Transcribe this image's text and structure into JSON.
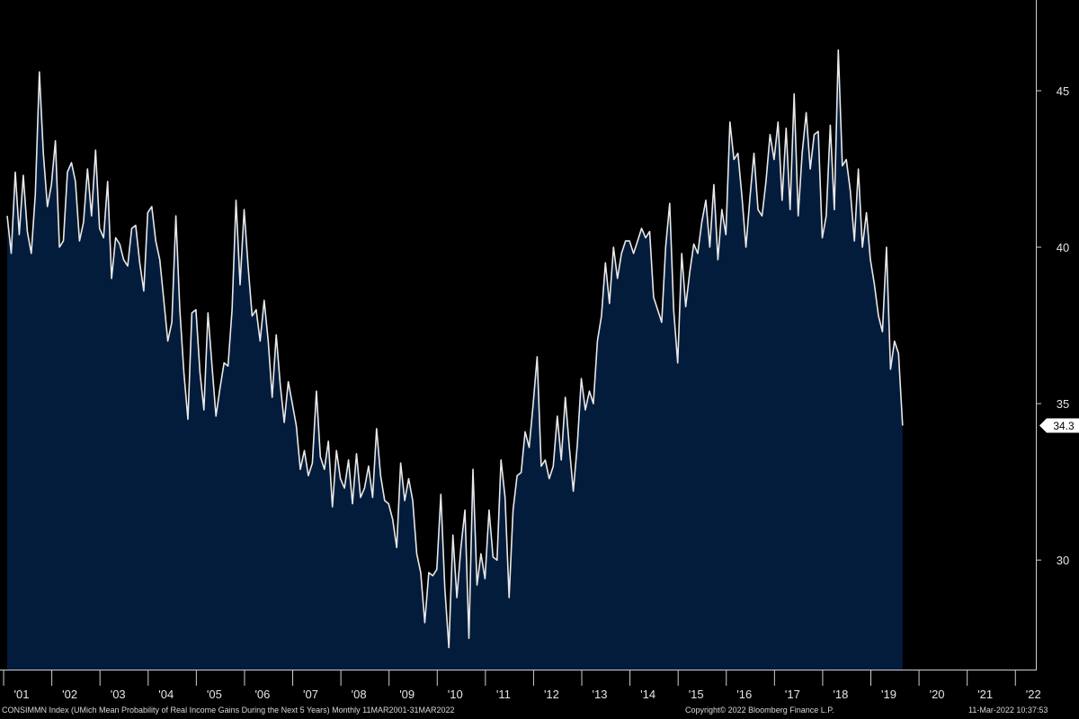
{
  "colors": {
    "background": "#000000",
    "area_fill": "#041c3c",
    "line": "#e8e8e8",
    "axis": "#cfcfcf",
    "label": "#e6e6e6",
    "last_value_box": "#ffffff"
  },
  "footer": {
    "description": "CONSIMMN Index (UMich Mean Probability of Real Income Gains During the Next 5 Years)  Monthly 11MAR2001-31MAR2022",
    "copyright": "Copyright© 2022 Bloomberg Finance L.P.",
    "timestamp": "11-Mar-2022 10:37:53"
  },
  "chart_data": {
    "type": "area",
    "x_start": 2001.0,
    "x_step": 0.0833333,
    "xlim": [
      2000.85,
      2022.35
    ],
    "ylim": [
      26.5,
      47.9
    ],
    "grid": false,
    "y_axis_side": "right",
    "y_ticks": [
      30,
      35,
      40,
      45
    ],
    "x_ticks": [
      {
        "value": 2001,
        "label": "'01"
      },
      {
        "value": 2002,
        "label": "'02"
      },
      {
        "value": 2003,
        "label": "'03"
      },
      {
        "value": 2004,
        "label": "'04"
      },
      {
        "value": 2005,
        "label": "'05"
      },
      {
        "value": 2006,
        "label": "'06"
      },
      {
        "value": 2007,
        "label": "'07"
      },
      {
        "value": 2008,
        "label": "'08"
      },
      {
        "value": 2009,
        "label": "'09"
      },
      {
        "value": 2010,
        "label": "'10"
      },
      {
        "value": 2011,
        "label": "'11"
      },
      {
        "value": 2012,
        "label": "'12"
      },
      {
        "value": 2013,
        "label": "'13"
      },
      {
        "value": 2014,
        "label": "'14"
      },
      {
        "value": 2015,
        "label": "'15"
      },
      {
        "value": 2016,
        "label": "'16"
      },
      {
        "value": 2017,
        "label": "'17"
      },
      {
        "value": 2018,
        "label": "'18"
      },
      {
        "value": 2019,
        "label": "'19"
      },
      {
        "value": 2020,
        "label": "'20"
      },
      {
        "value": 2021,
        "label": "'21"
      },
      {
        "value": 2022,
        "label": "'22"
      }
    ],
    "last_value_label": "34.3",
    "series": [
      {
        "values": [
          41.0,
          39.8,
          42.4,
          40.4,
          42.3,
          40.5,
          39.8,
          41.7,
          45.6,
          43.0,
          41.3,
          42.0,
          43.4,
          40.0,
          40.2,
          42.4,
          42.7,
          42.1,
          40.2,
          40.8,
          42.5,
          41.0,
          43.1,
          40.6,
          40.3,
          42.1,
          39.0,
          40.3,
          40.1,
          39.6,
          39.4,
          40.6,
          40.7,
          39.5,
          38.6,
          41.1,
          41.3,
          40.2,
          39.6,
          38.3,
          37.0,
          37.6,
          41.0,
          38.0,
          36.0,
          34.5,
          37.9,
          38.0,
          36.0,
          34.8,
          37.9,
          36.2,
          34.6,
          35.5,
          36.3,
          36.2,
          38.0,
          41.5,
          38.8,
          41.2,
          39.4,
          37.8,
          38.0,
          37.0,
          38.3,
          37.0,
          35.2,
          37.2,
          35.6,
          34.4,
          35.7,
          35.0,
          34.3,
          32.9,
          33.5,
          32.7,
          33.1,
          35.4,
          33.3,
          32.9,
          33.8,
          31.7,
          33.5,
          32.6,
          32.3,
          33.2,
          31.8,
          33.4,
          32.0,
          32.3,
          33.0,
          32.0,
          34.2,
          32.7,
          31.9,
          31.8,
          31.3,
          30.4,
          33.1,
          31.9,
          32.6,
          31.9,
          30.2,
          29.6,
          28.0,
          29.6,
          29.5,
          29.7,
          32.1,
          29.1,
          27.2,
          30.8,
          28.8,
          30.4,
          31.6,
          27.5,
          32.9,
          29.2,
          30.2,
          29.4,
          31.6,
          30.1,
          30.0,
          33.2,
          32.0,
          28.8,
          31.6,
          32.7,
          32.8,
          34.1,
          33.6,
          35.0,
          36.5,
          33.0,
          33.2,
          32.6,
          33.0,
          34.6,
          33.2,
          35.2,
          33.6,
          32.2,
          33.7,
          35.8,
          34.8,
          35.4,
          35.0,
          37.0,
          37.8,
          39.5,
          38.2,
          40.0,
          39.0,
          39.8,
          40.2,
          40.2,
          39.8,
          40.2,
          40.6,
          40.3,
          40.5,
          38.4,
          38.0,
          37.6,
          40.0,
          41.4,
          38.0,
          36.3,
          39.8,
          38.1,
          39.2,
          40.1,
          39.8,
          40.8,
          41.5,
          40.0,
          42.0,
          39.6,
          41.2,
          40.4,
          44.0,
          42.8,
          43.0,
          41.6,
          40.0,
          41.6,
          43.0,
          41.2,
          41.0,
          42.1,
          43.6,
          42.8,
          44.0,
          41.5,
          43.8,
          41.2,
          44.9,
          41.0,
          43.0,
          44.3,
          42.5,
          43.6,
          43.7,
          40.3,
          41.0,
          43.9,
          41.2,
          46.3,
          42.6,
          42.8,
          41.8,
          40.2,
          42.5,
          40.0,
          41.1,
          39.6,
          38.8,
          37.8,
          37.3,
          40.0,
          36.1,
          37.0,
          36.6,
          34.3
        ]
      }
    ]
  }
}
